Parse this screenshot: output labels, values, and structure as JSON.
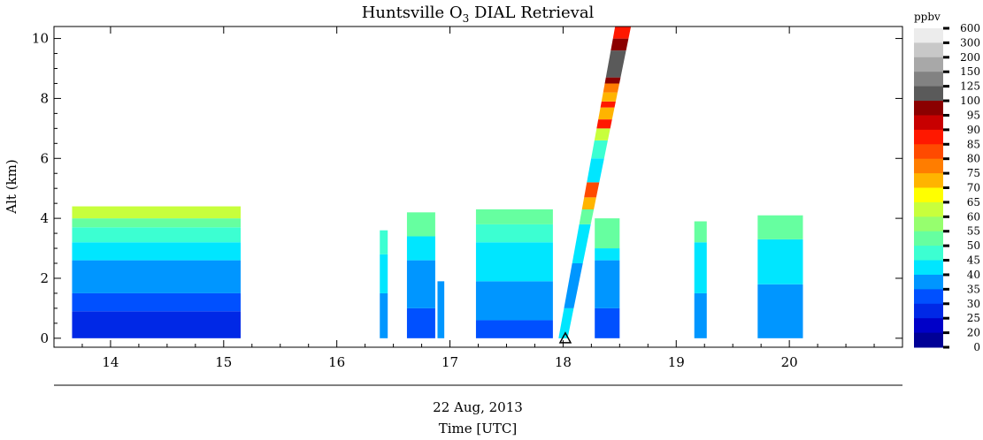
{
  "chart_data": {
    "type": "heatmap",
    "title": "Huntsville O",
    "title_subscript": "3",
    "title_suffix": " DIAL Retrieval",
    "ylabel": "Alt (km)",
    "date_label": "22 Aug, 2013",
    "xlabel": "Time [UTC]",
    "xlim": [
      13.5,
      21.0
    ],
    "ylim": [
      -0.3,
      10.4
    ],
    "x_ticks": [
      14,
      15,
      16,
      17,
      18,
      19,
      20
    ],
    "y_ticks": [
      0,
      2,
      4,
      6,
      8,
      10
    ],
    "colorbar": {
      "unit": "ppbv",
      "levels": [
        "600",
        "300",
        "200",
        "150",
        "125",
        "100",
        "95",
        "90",
        "85",
        "80",
        "75",
        "70",
        "65",
        "60",
        "55",
        "50",
        "45",
        "40",
        "35",
        "30",
        "25",
        "20",
        "0"
      ],
      "colors": [
        "#ececec",
        "#c8c8c8",
        "#a8a8a8",
        "#828282",
        "#5a5a5a",
        "#8b0000",
        "#c80000",
        "#ff1800",
        "#ff4a00",
        "#ff7d00",
        "#ffb400",
        "#ffff00",
        "#c8ff3c",
        "#96ff6e",
        "#66ffa0",
        "#3cffd2",
        "#00e6ff",
        "#0096ff",
        "#0050ff",
        "#0028e6",
        "#0000c8",
        "#000096"
      ]
    },
    "marker": {
      "symbol": "triangle",
      "x": 18.02,
      "y": 0
    },
    "columns": [
      {
        "x0": 13.66,
        "x1": 15.15,
        "top": 4.15,
        "bands": [
          [
            0.9,
            "#0028e6"
          ],
          [
            1.5,
            "#0050ff"
          ],
          [
            2.6,
            "#0096ff"
          ],
          [
            3.2,
            "#00e6ff"
          ],
          [
            3.7,
            "#3cffd2"
          ],
          [
            4.0,
            "#66ffa0"
          ],
          [
            4.4,
            "#c8ff3c"
          ]
        ]
      },
      {
        "x0": 16.38,
        "x1": 16.45,
        "top": 3.6,
        "bands": [
          [
            1.5,
            "#0096ff"
          ],
          [
            2.8,
            "#00e6ff"
          ],
          [
            3.6,
            "#3cffd2"
          ]
        ]
      },
      {
        "x0": 16.62,
        "x1": 16.87,
        "top": 4.0,
        "bands": [
          [
            1.0,
            "#0050ff"
          ],
          [
            2.6,
            "#0096ff"
          ],
          [
            3.4,
            "#00e6ff"
          ],
          [
            4.2,
            "#66ffa0"
          ]
        ]
      },
      {
        "x0": 16.89,
        "x1": 16.95,
        "top": 1.9,
        "bands": [
          [
            1.9,
            "#0096ff"
          ]
        ]
      },
      {
        "x0": 17.23,
        "x1": 17.91,
        "top": 4.0,
        "bands": [
          [
            0.6,
            "#0050ff"
          ],
          [
            1.9,
            "#0096ff"
          ],
          [
            3.2,
            "#00e6ff"
          ],
          [
            3.8,
            "#3cffd2"
          ],
          [
            4.3,
            "#66ffa0"
          ]
        ]
      },
      {
        "x0": 18.28,
        "x1": 18.5,
        "top": 4.0,
        "bands": [
          [
            1.0,
            "#0050ff"
          ],
          [
            2.6,
            "#0096ff"
          ],
          [
            3.0,
            "#00e6ff"
          ],
          [
            4.0,
            "#66ffa0"
          ]
        ]
      },
      {
        "x0": 19.16,
        "x1": 19.27,
        "top": 3.9,
        "bands": [
          [
            1.5,
            "#0096ff"
          ],
          [
            3.2,
            "#00e6ff"
          ],
          [
            3.9,
            "#66ffa0"
          ]
        ]
      },
      {
        "x0": 19.72,
        "x1": 20.12,
        "top": 3.9,
        "bands": [
          [
            1.8,
            "#0096ff"
          ],
          [
            3.3,
            "#00e6ff"
          ],
          [
            4.1,
            "#66ffa0"
          ]
        ]
      }
    ],
    "slant_profile": {
      "x_bottom": [
        17.96,
        18.04
      ],
      "x_top": [
        18.46,
        18.6
      ],
      "bands": [
        [
          1.0,
          "#00e6ff"
        ],
        [
          2.5,
          "#0096ff"
        ],
        [
          3.8,
          "#00e6ff"
        ],
        [
          4.3,
          "#66ffa0"
        ],
        [
          4.7,
          "#ffb400"
        ],
        [
          5.2,
          "#ff4a00"
        ],
        [
          6.0,
          "#00e6ff"
        ],
        [
          6.6,
          "#3cffd2"
        ],
        [
          7.0,
          "#c8ff3c"
        ],
        [
          7.3,
          "#ff1800"
        ],
        [
          7.7,
          "#ffb400"
        ],
        [
          7.9,
          "#ff1800"
        ],
        [
          8.2,
          "#ffb400"
        ],
        [
          8.5,
          "#ff7d00"
        ],
        [
          8.7,
          "#8b0000"
        ],
        [
          9.6,
          "#5a5a5a"
        ],
        [
          10.0,
          "#8b0000"
        ],
        [
          10.4,
          "#ff1800"
        ]
      ]
    }
  }
}
